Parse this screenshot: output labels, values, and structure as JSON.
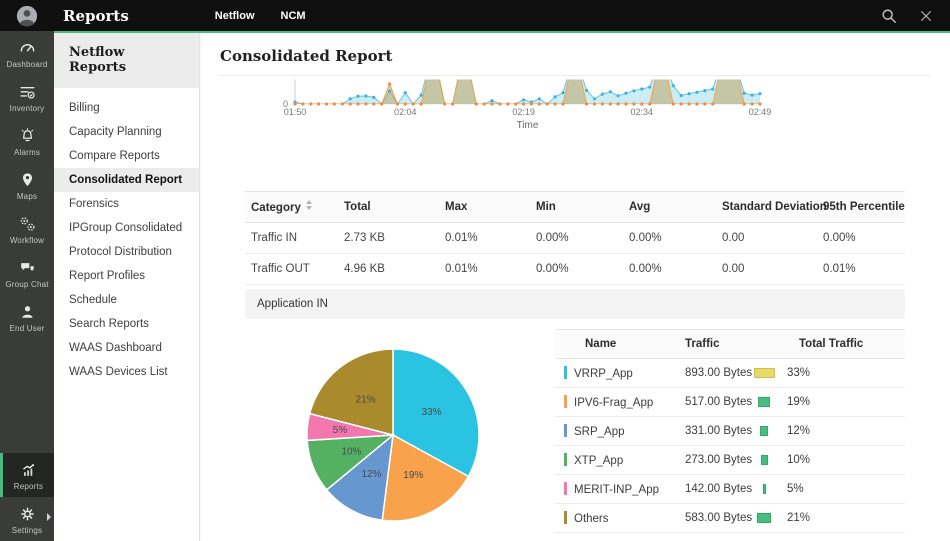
{
  "topbar": {
    "title": "Reports",
    "tabs": [
      "Netflow",
      "NCM"
    ]
  },
  "rail": {
    "items": [
      {
        "label": "Dashboard"
      },
      {
        "label": "Inventory"
      },
      {
        "label": "Alarms"
      },
      {
        "label": "Maps"
      },
      {
        "label": "Workflow"
      },
      {
        "label": "Group Chat"
      },
      {
        "label": "End User"
      },
      {
        "label": "Reports"
      },
      {
        "label": "Settings"
      }
    ],
    "active": "Reports"
  },
  "subnav": {
    "title": "Netflow Reports",
    "items": [
      "Billing",
      "Capacity Planning",
      "Compare Reports",
      "Consolidated Report",
      "Forensics",
      "IPGroup Consolidated",
      "Protocol Distribution",
      "Report Profiles",
      "Schedule",
      "Search Reports",
      "WAAS Dashboard",
      "WAAS Devices List"
    ],
    "selected": "Consolidated Report"
  },
  "page": {
    "title": "Consolidated Report"
  },
  "chart_data": [
    {
      "type": "area",
      "xlabel": "Time",
      "y_baseline_label": "0",
      "x_tick_positions": [
        0,
        14,
        29,
        44,
        59
      ],
      "x_tick_labels": [
        "01:50",
        "02:04",
        "02:19",
        "02:34",
        "02:49"
      ],
      "ylim": [
        0,
        100
      ],
      "clip_overflow": true,
      "grid": false,
      "legend": false,
      "note_scale": "values estimated as percent of plot height; >100 = spike clipped at plot top",
      "series": [
        {
          "name": "traffic-blue",
          "color": "#5fc6e4",
          "fill": "rgba(140,214,236,0.45)",
          "marker": "#3eb3d8",
          "values": [
            8,
            0,
            0,
            0,
            0,
            0,
            0,
            22,
            33,
            34,
            28,
            0,
            55,
            0,
            48,
            0,
            38,
            160,
            160,
            0,
            0,
            160,
            160,
            0,
            0,
            14,
            0,
            0,
            0,
            18,
            8,
            22,
            0,
            30,
            48,
            160,
            160,
            58,
            22,
            42,
            52,
            35,
            46,
            56,
            64,
            72,
            160,
            160,
            78,
            36,
            44,
            50,
            57,
            64,
            160,
            160,
            160,
            46,
            38,
            44
          ]
        },
        {
          "name": "traffic-orange",
          "color": "#f5a04c",
          "fill": "rgba(190,160,85,0.5)",
          "marker": "#f28b3b",
          "values": [
            0,
            0,
            0,
            0,
            0,
            0,
            0,
            0,
            0,
            0,
            0,
            0,
            85,
            0,
            0,
            0,
            0,
            150,
            150,
            0,
            0,
            150,
            150,
            0,
            0,
            0,
            0,
            0,
            0,
            0,
            0,
            0,
            0,
            0,
            0,
            150,
            150,
            0,
            0,
            0,
            0,
            0,
            0,
            0,
            0,
            0,
            150,
            150,
            0,
            0,
            0,
            0,
            0,
            0,
            150,
            150,
            150,
            0,
            0,
            0
          ]
        }
      ]
    },
    {
      "type": "pie",
      "values": [
        33,
        19,
        12,
        10,
        5,
        21
      ],
      "labels": [
        "33%",
        "19%",
        "12%",
        "10%",
        "5%",
        "21%"
      ],
      "colors": [
        "#2bc3e2",
        "#f8a24b",
        "#6697cf",
        "#54b161",
        "#f277ae",
        "#a98b2d"
      ],
      "legend": false
    }
  ],
  "summary_table": {
    "headers": [
      "Category",
      "Total",
      "Max",
      "Min",
      "Avg",
      "Standard Deviation",
      "95th Percentile"
    ],
    "sortable_header": "Category",
    "rows": [
      [
        "Traffic IN",
        "2.73 KB",
        "0.01%",
        "0.00%",
        "0.00%",
        "0.00",
        "0.00%"
      ],
      [
        "Traffic OUT",
        "4.96 KB",
        "0.01%",
        "0.00%",
        "0.00%",
        "0.00",
        "0.01%"
      ]
    ]
  },
  "section_header": "Application IN",
  "app_table": {
    "headers": [
      "Name",
      "Traffic",
      "Total Traffic"
    ],
    "rows": [
      {
        "name": "VRRP_App",
        "marker_color": "#2bc3e2",
        "traffic": "893.00 Bytes",
        "percent": 33,
        "percent_label": "33%",
        "bar_color": "#e8da69",
        "bar_border": "#cdbf4f"
      },
      {
        "name": "IPV6-Frag_App",
        "marker_color": "#f8a24b",
        "traffic": "517.00 Bytes",
        "percent": 19,
        "percent_label": "19%",
        "bar_color": "#49bd7d",
        "bar_border": "#33a968"
      },
      {
        "name": "SRP_App",
        "marker_color": "#6697cf",
        "traffic": "331.00 Bytes",
        "percent": 12,
        "percent_label": "12%",
        "bar_color": "#49bd7d",
        "bar_border": "#33a968"
      },
      {
        "name": "XTP_App",
        "marker_color": "#54b161",
        "traffic": "273.00 Bytes",
        "percent": 10,
        "percent_label": "10%",
        "bar_color": "#49bd7d",
        "bar_border": "#33a968"
      },
      {
        "name": "MERIT-INP_App",
        "marker_color": "#f277ae",
        "traffic": "142.00 Bytes",
        "percent": 5,
        "percent_label": "5%",
        "bar_color": "#49bd7d",
        "bar_border": "#33a968"
      },
      {
        "name": "Others",
        "marker_color": "#a98b2d",
        "traffic": "583.00 Bytes",
        "percent": 21,
        "percent_label": "21%",
        "bar_color": "#49bd7d",
        "bar_border": "#33a968"
      }
    ]
  }
}
